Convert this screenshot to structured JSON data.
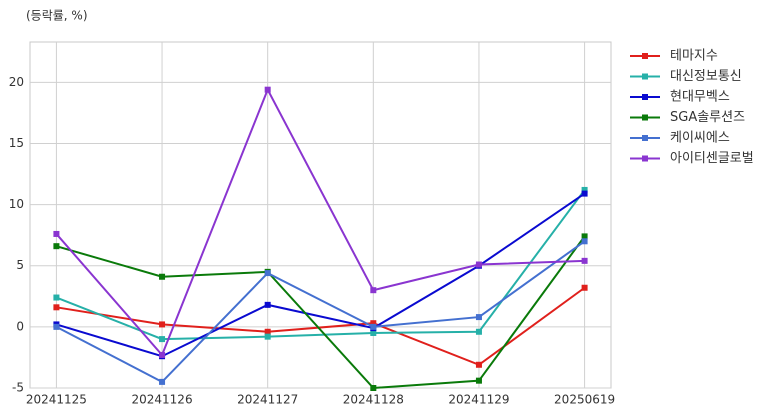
{
  "chart_data": {
    "type": "line",
    "y_label": "(등락률, %)",
    "categories": [
      "20241125",
      "20241126",
      "20241127",
      "20241128",
      "20241129",
      "20250619"
    ],
    "series": [
      {
        "name": "테마지수",
        "color": "#e0201c",
        "values": [
          1.6,
          0.2,
          -0.4,
          0.3,
          -3.1,
          3.2
        ]
      },
      {
        "name": "대신정보통신",
        "color": "#26b0a8",
        "values": [
          2.4,
          -1.0,
          -0.8,
          -0.5,
          -0.4,
          11.2
        ]
      },
      {
        "name": "현대무벡스",
        "color": "#0a0ad0",
        "values": [
          0.2,
          -2.4,
          1.8,
          -0.1,
          5.0,
          10.9
        ]
      },
      {
        "name": "SGA솔루션즈",
        "color": "#0a7a0a",
        "values": [
          6.6,
          4.1,
          4.5,
          -5.0,
          -4.4,
          7.4
        ]
      },
      {
        "name": "케이씨에스",
        "color": "#4470d0",
        "values": [
          0.0,
          -4.5,
          4.4,
          0.0,
          0.8,
          7.0
        ]
      },
      {
        "name": "아이티센글로벌",
        "color": "#8a35d0",
        "values": [
          7.6,
          -2.3,
          19.4,
          3.0,
          5.1,
          5.4
        ]
      }
    ],
    "ylim": [
      -5,
      23.3
    ],
    "yticks": [
      -5,
      0,
      5,
      10,
      15,
      20
    ],
    "grid": true,
    "legend": "right"
  }
}
